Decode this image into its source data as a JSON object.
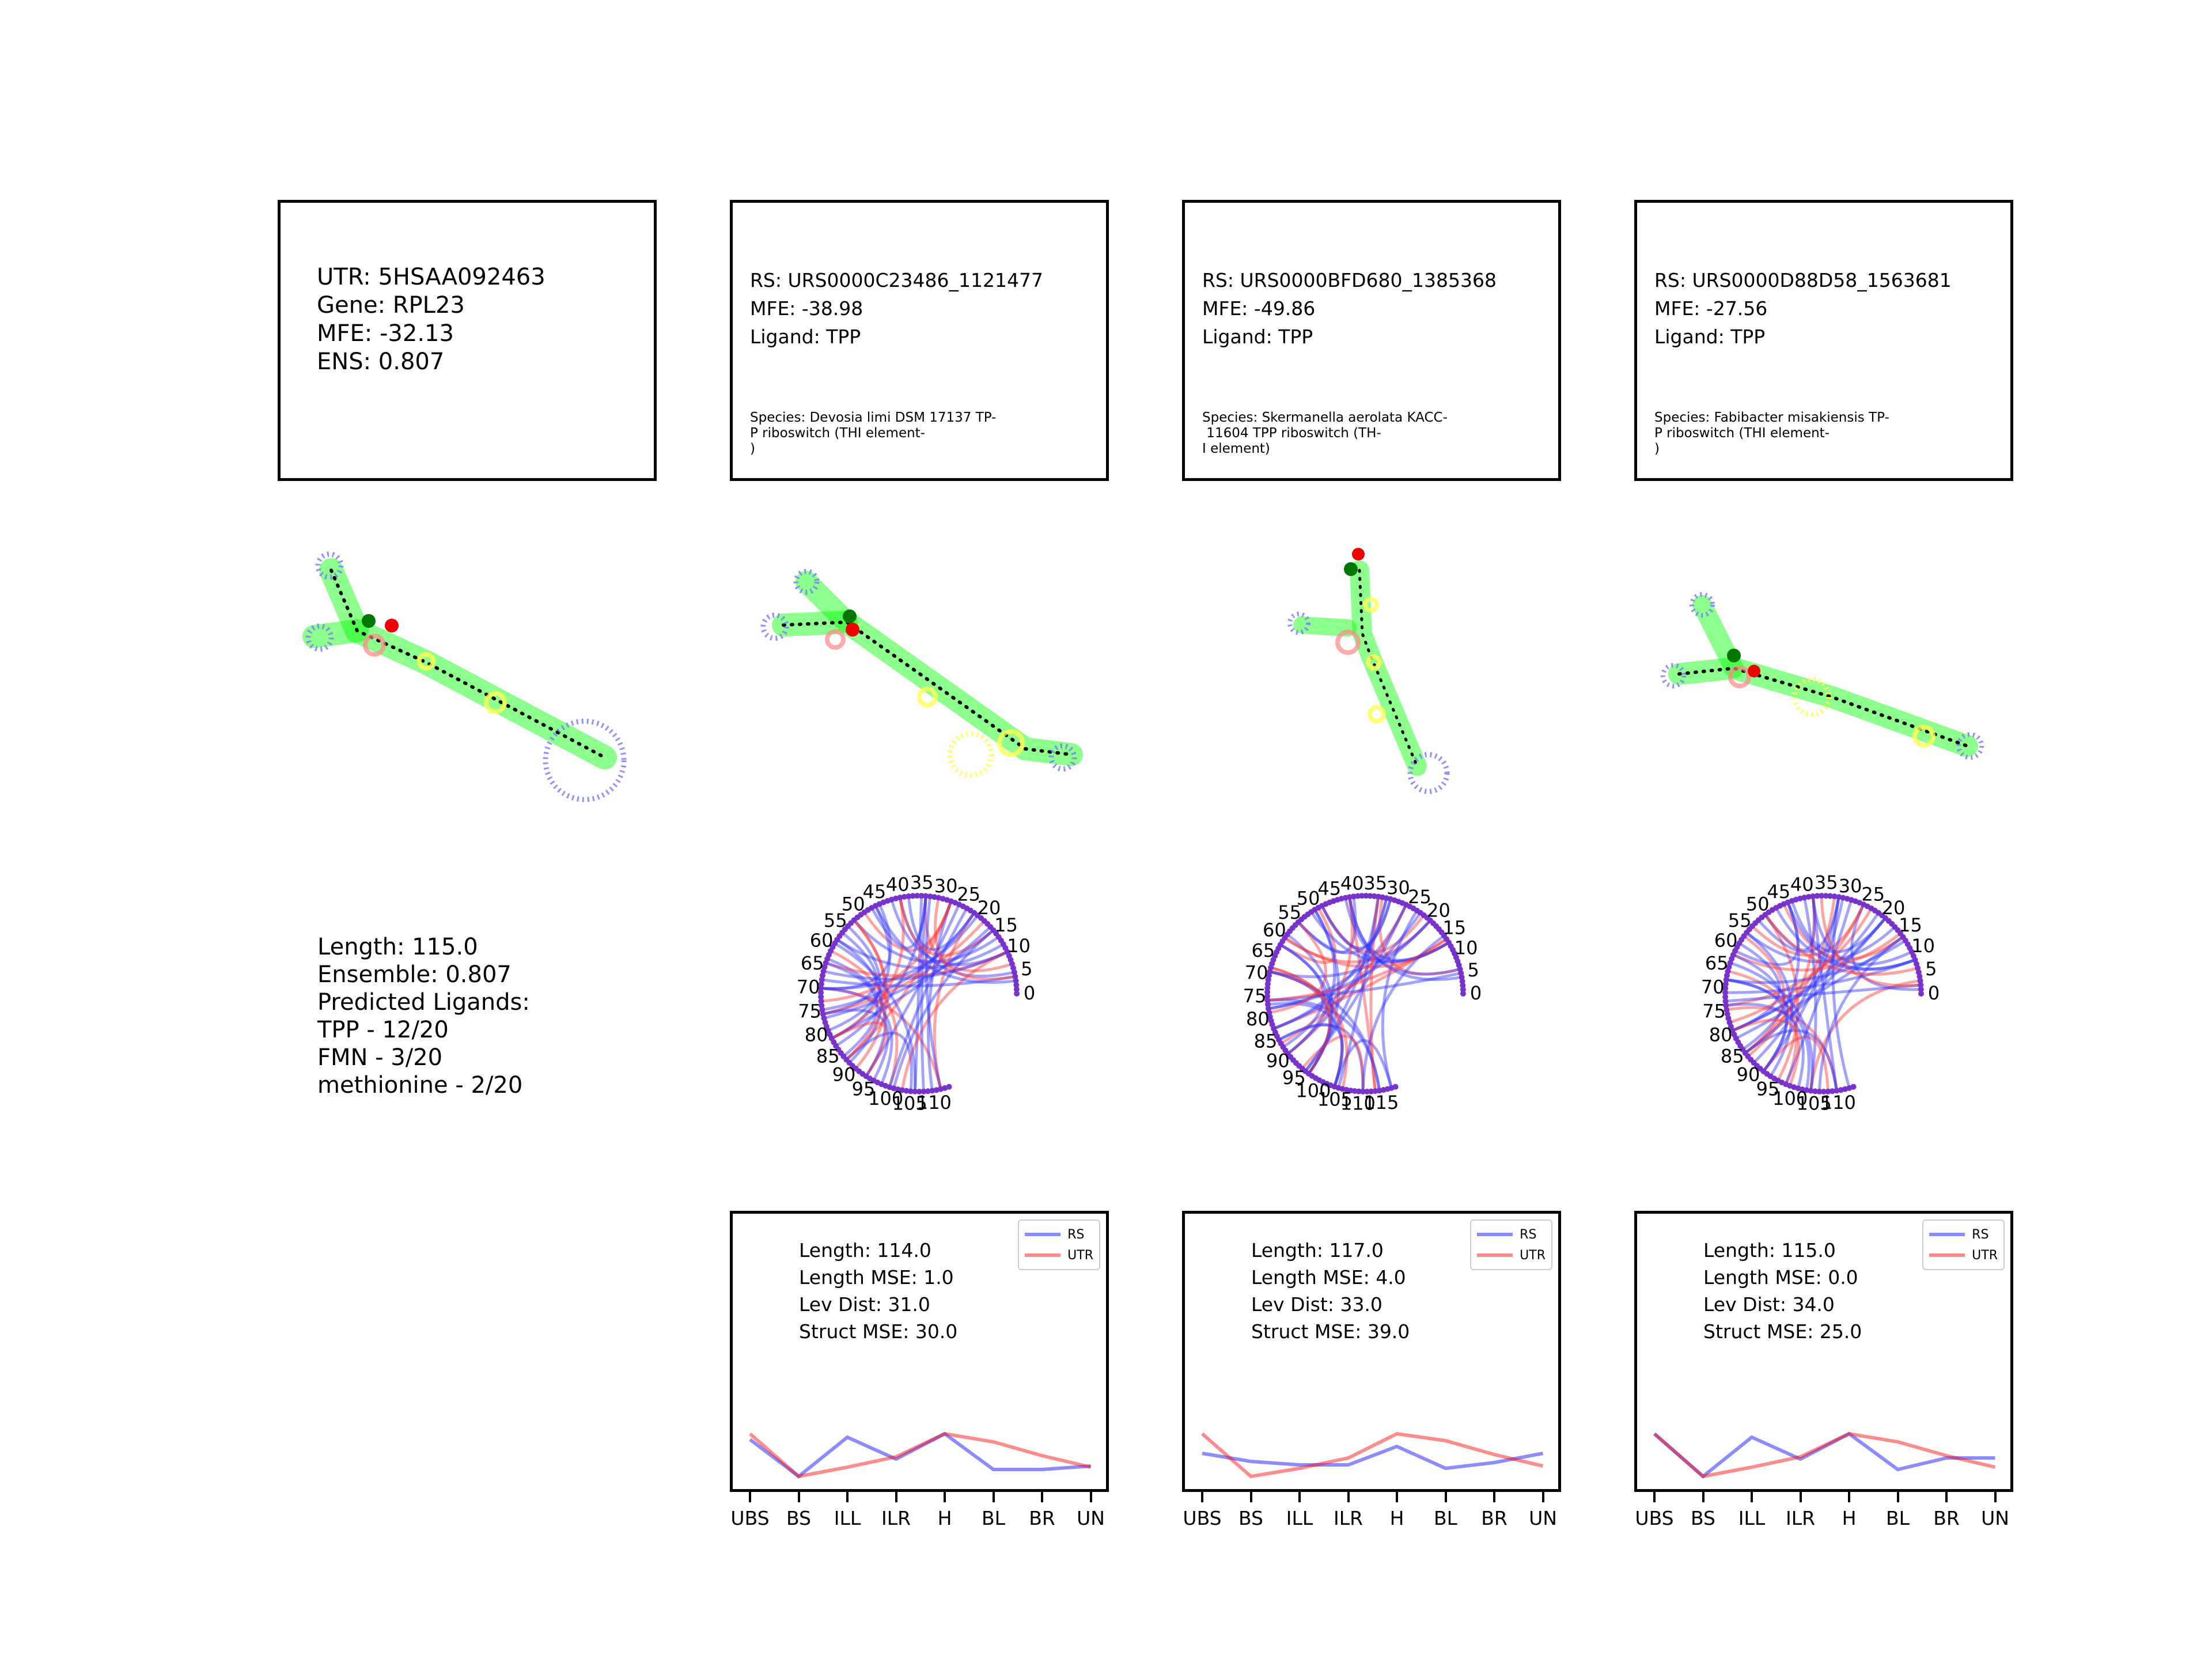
{
  "utr": {
    "lines": [
      "UTR: 5HSAA092463",
      "Gene: RPL23",
      "MFE: -32.13",
      "ENS: 0.807"
    ],
    "summary": [
      "Length: 115.0",
      "Ensemble: 0.807",
      "Predicted Ligands:",
      "TPP - 12/20",
      "FMN - 3/20",
      "methionine - 2/20"
    ]
  },
  "riboswitches": [
    {
      "id_line": "RS: URS0000C23486_1121477",
      "mfe_line": "MFE: -38.98",
      "ligand_line": "Ligand: TPP",
      "species_lines": [
        "Species: Devosia limi DSM 17137 TP-",
        "P riboswitch (THI element-",
        ")"
      ],
      "metrics": [
        "Length: 114.0",
        "Length MSE: 1.0",
        "Lev Dist: 31.0",
        "Struct MSE: 30.0"
      ],
      "arc_labels": [
        "0",
        "5",
        "10",
        "15",
        "20",
        "25",
        "30",
        "35",
        "40",
        "45",
        "50",
        "55",
        "60",
        "65",
        "70",
        "75",
        "80",
        "85",
        "90",
        "95",
        "100",
        "105",
        "110"
      ]
    },
    {
      "id_line": "RS: URS0000BFD680_1385368",
      "mfe_line": "MFE: -49.86",
      "ligand_line": "Ligand: TPP",
      "species_lines": [
        "Species: Skermanella aerolata KACC-",
        " 11604 TPP riboswitch (TH-",
        "I element)"
      ],
      "metrics": [
        "Length: 117.0",
        "Length MSE: 4.0",
        "Lev Dist: 33.0",
        "Struct MSE: 39.0"
      ],
      "arc_labels": [
        "0",
        "5",
        "10",
        "15",
        "20",
        "25",
        "30",
        "35",
        "40",
        "45",
        "50",
        "55",
        "60",
        "65",
        "70",
        "75",
        "80",
        "85",
        "90",
        "95",
        "100",
        "105",
        "110",
        "115"
      ]
    },
    {
      "id_line": "RS: URS0000D88D58_1563681",
      "mfe_line": "MFE: -27.56",
      "ligand_line": "Ligand: TPP",
      "species_lines": [
        "Species: Fabibacter misakiensis TP-",
        "P riboswitch (THI element-",
        ")"
      ],
      "metrics": [
        "Length: 115.0",
        "Length MSE: 0.0",
        "Lev Dist: 34.0",
        "Struct MSE: 25.0"
      ],
      "arc_labels": [
        "0",
        "5",
        "10",
        "15",
        "20",
        "25",
        "30",
        "35",
        "40",
        "45",
        "50",
        "55",
        "60",
        "65",
        "70",
        "75",
        "80",
        "85",
        "90",
        "95",
        "100",
        "105",
        "110"
      ]
    }
  ],
  "chart_data": [
    {
      "type": "line",
      "categories": [
        "UBS",
        "BS",
        "ILL",
        "ILR",
        "H",
        "BL",
        "BR",
        "UN"
      ],
      "series": [
        {
          "name": "RS",
          "color": "#0000ff",
          "values": [
            0.32,
            0.0,
            0.34,
            0.15,
            0.37,
            0.06,
            0.06,
            0.09
          ]
        },
        {
          "name": "UTR",
          "color": "#ff0000",
          "values": [
            0.37,
            0.0,
            0.08,
            0.17,
            0.37,
            0.3,
            0.18,
            0.08
          ]
        }
      ],
      "legend_position": "top-right"
    },
    {
      "type": "line",
      "categories": [
        "UBS",
        "BS",
        "ILL",
        "ILR",
        "H",
        "BL",
        "BR",
        "UN"
      ],
      "series": [
        {
          "name": "RS",
          "color": "#0000ff",
          "values": [
            0.2,
            0.13,
            0.1,
            0.1,
            0.26,
            0.07,
            0.12,
            0.2
          ]
        },
        {
          "name": "UTR",
          "color": "#ff0000",
          "values": [
            0.37,
            0.0,
            0.07,
            0.16,
            0.37,
            0.31,
            0.19,
            0.09
          ]
        }
      ],
      "legend_position": "top-right"
    },
    {
      "type": "line",
      "categories": [
        "UBS",
        "BS",
        "ILL",
        "ILR",
        "H",
        "BL",
        "BR",
        "UN"
      ],
      "series": [
        {
          "name": "RS",
          "color": "#0000ff",
          "values": [
            0.37,
            0.0,
            0.34,
            0.15,
            0.37,
            0.06,
            0.16,
            0.16
          ]
        },
        {
          "name": "UTR",
          "color": "#ff0000",
          "values": [
            0.37,
            0.0,
            0.08,
            0.17,
            0.37,
            0.3,
            0.18,
            0.08
          ]
        }
      ],
      "legend_position": "top-right"
    }
  ],
  "colors": {
    "rs": "#0000ff",
    "utr": "#ff0000",
    "stem": "#00ff00",
    "loop": "#7777ff",
    "bulge": "#ffff55",
    "multiloop": "#ff8888"
  },
  "icons": [
    "rna-secondary-structure-icon",
    "chord-diagram-icon"
  ]
}
